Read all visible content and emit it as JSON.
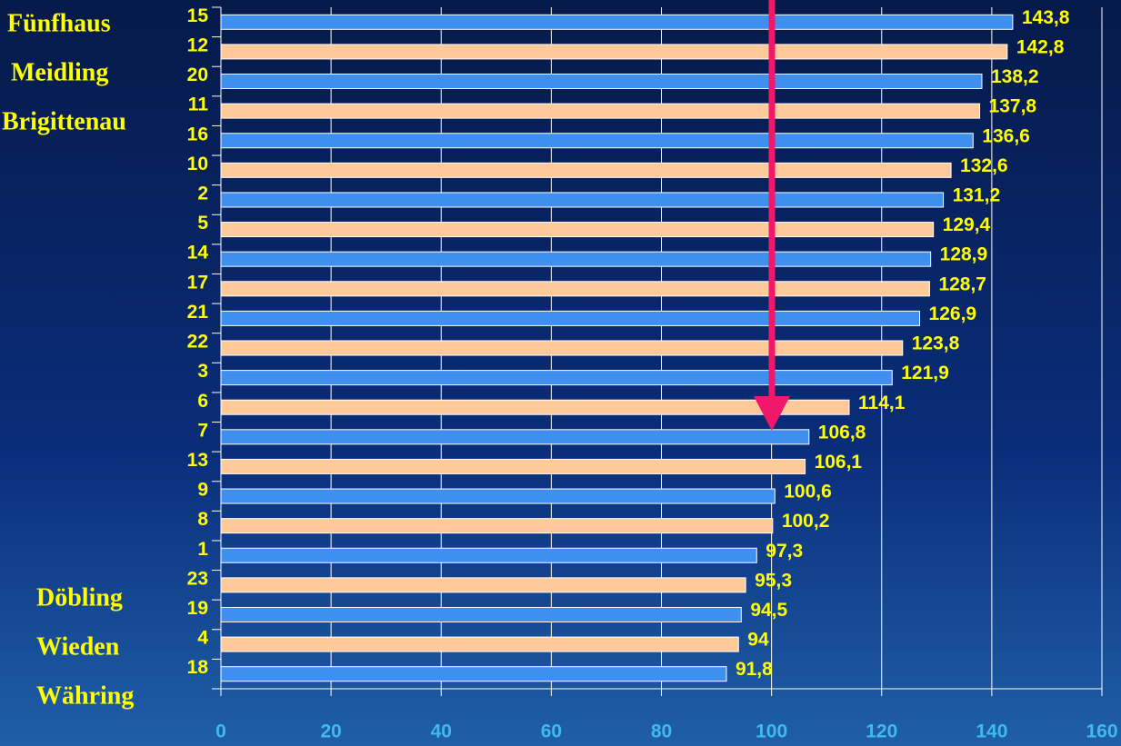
{
  "chart_data": {
    "type": "bar",
    "orientation": "horizontal",
    "categories": [
      "15",
      "12",
      "20",
      "11",
      "16",
      "10",
      "2",
      "5",
      "14",
      "17",
      "21",
      "22",
      "3",
      "6",
      "7",
      "13",
      "9",
      "8",
      "1",
      "23",
      "19",
      "4",
      "18"
    ],
    "values": [
      143.8,
      142.8,
      138.2,
      137.8,
      136.6,
      132.6,
      131.2,
      129.4,
      128.9,
      128.7,
      126.9,
      123.8,
      121.9,
      114.1,
      106.8,
      106.1,
      100.6,
      100.2,
      97.3,
      95.3,
      94.5,
      94,
      91.8
    ],
    "value_labels": [
      "143,8",
      "142,8",
      "138,2",
      "137,8",
      "136,6",
      "132,6",
      "131,2",
      "129,4",
      "128,9",
      "128,7",
      "126,9",
      "123,8",
      "121,9",
      "114,1",
      "106,8",
      "106,1",
      "100,6",
      "100,2",
      "97,3",
      "95,3",
      "94,5",
      "94",
      "91,8"
    ],
    "colors": [
      "#3f8fef",
      "#ffc99a",
      "#3f8fef",
      "#ffc99a",
      "#3f8fef",
      "#ffc99a",
      "#3f8fef",
      "#ffc99a",
      "#3f8fef",
      "#ffc99a",
      "#3f8fef",
      "#ffc99a",
      "#3f8fef",
      "#ffc99a",
      "#3f8fef",
      "#ffc99a",
      "#3f8fef",
      "#ffc99a",
      "#3f8fef",
      "#ffc99a",
      "#3f8fef",
      "#ffc99a",
      "#3f8fef"
    ],
    "xlim": [
      0,
      160
    ],
    "xticks": [
      0,
      20,
      40,
      60,
      80,
      100,
      120,
      140,
      160
    ],
    "grid": true,
    "annotations": [
      "Fünfhaus",
      "Meidling",
      "Brigittenau",
      "Döbling",
      "Wieden",
      "Währing"
    ]
  }
}
